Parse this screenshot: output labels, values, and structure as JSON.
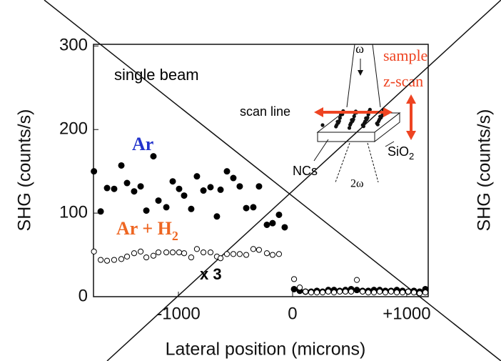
{
  "chart_data": {
    "type": "scatter",
    "xlabel": "Lateral position (microns)",
    "ylabel": "SHG (counts/s)",
    "y2label": "SHG (counts/s)",
    "xlim": [
      -1744,
      1188
    ],
    "ylim": [
      0,
      302
    ],
    "xticks": [
      -1000,
      0,
      {
        "value": 1000,
        "label": "+1000"
      }
    ],
    "yticks": [
      0,
      100,
      200,
      300
    ],
    "series": [
      {
        "name": "Ar",
        "color": "#2233cc",
        "marker": "filled",
        "x": [
          -1740,
          -1681,
          -1625,
          -1563,
          -1500,
          -1450,
          -1388,
          -1331,
          -1281,
          -1219,
          -1175,
          -1106,
          -1050,
          -994,
          -950,
          -888,
          -838,
          -781,
          -719,
          -663,
          -631,
          -575,
          -519,
          -463,
          -406,
          -344,
          -294,
          -225,
          -175,
          -119,
          -69,
          13,
          63,
          113,
          163,
          213,
          263,
          313,
          363,
          413,
          463,
          513,
          563,
          613,
          663,
          713,
          763,
          813,
          863,
          913,
          963,
          1013,
          1063,
          1113,
          1163
        ],
        "values": [
          150,
          102,
          130,
          129,
          157,
          136,
          126,
          132,
          103,
          168,
          115,
          107,
          138,
          129,
          121,
          105,
          144,
          127,
          131,
          96,
          128,
          150,
          142,
          132,
          106,
          107,
          132,
          86,
          88,
          98,
          83,
          9,
          7,
          6,
          6,
          7,
          6,
          8,
          8,
          7,
          8,
          9,
          8,
          7,
          7,
          8,
          8,
          7,
          7,
          8,
          7,
          6,
          7,
          6,
          9
        ]
      },
      {
        "name": "Ar + H",
        "name_sub": "2",
        "color": "#ee6622",
        "marker": "open",
        "x": [
          -1740,
          -1681,
          -1625,
          -1563,
          -1500,
          -1450,
          -1388,
          -1331,
          -1281,
          -1219,
          -1175,
          -1106,
          -1050,
          -994,
          -950,
          -888,
          -838,
          -781,
          -719,
          -663,
          -631,
          -575,
          -519,
          -463,
          -406,
          -344,
          -294,
          -225,
          -175,
          -119,
          13,
          63,
          113,
          163,
          213,
          263,
          313,
          363,
          413,
          463,
          513,
          563,
          613,
          663,
          713,
          763,
          813,
          863,
          913,
          963,
          1013,
          1063,
          1113,
          1163
        ],
        "values": [
          54,
          44,
          43,
          44,
          45,
          48,
          52,
          54,
          47,
          49,
          53,
          53,
          53,
          53,
          52,
          47,
          57,
          53,
          53,
          48,
          46,
          51,
          51,
          51,
          50,
          57,
          56,
          52,
          50,
          51,
          21,
          11,
          6,
          5,
          5,
          5,
          6,
          5,
          6,
          6,
          6,
          20,
          6,
          5,
          5,
          6,
          5,
          6,
          5,
          5,
          6,
          5,
          4,
          5
        ]
      }
    ],
    "annotations": [
      "single beam",
      "x 3"
    ],
    "inset": {
      "omega": "ω",
      "sample": "sample",
      "zscan": "z-scan",
      "scan_line": "scan line",
      "ncs": "NCs",
      "sio": "SiO",
      "sio_sub": "2",
      "two_omega": "2ω"
    }
  }
}
